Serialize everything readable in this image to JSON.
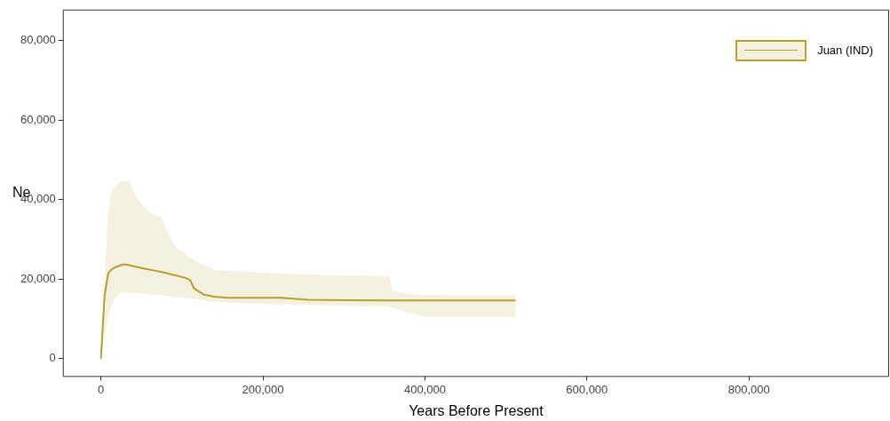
{
  "chart_data": {
    "type": "line",
    "xlabel": "Years Before Present",
    "ylabel": "Ne",
    "x": [
      0,
      4500,
      9000,
      12000,
      16800,
      25000,
      29000,
      35000,
      42500,
      54000,
      65000,
      75000,
      83000,
      93000,
      103000,
      110000,
      115000,
      127000,
      140000,
      155000,
      168000,
      222000,
      255000,
      300000,
      356000,
      360000,
      380000,
      401000,
      450000,
      512000
    ],
    "series": [
      {
        "name": "Juan (IND)",
        "color": "#b5a030",
        "values": [
          0,
          15900,
          21400,
          22200,
          22900,
          23500,
          23700,
          23500,
          23100,
          22600,
          22200,
          21800,
          21400,
          20900,
          20400,
          19800,
          17600,
          16100,
          15600,
          15300,
          15300,
          15300,
          14800,
          14700,
          14600,
          14600,
          14600,
          14600,
          14600,
          14600
        ],
        "upper": [
          1000,
          20000,
          36600,
          41400,
          43000,
          44700,
          44700,
          44700,
          41000,
          38100,
          36000,
          35600,
          31600,
          27900,
          26500,
          25300,
          25000,
          23500,
          22400,
          22000,
          22000,
          21400,
          21100,
          21000,
          20700,
          17000,
          16300,
          16000,
          15900,
          15900
        ],
        "lower": [
          0,
          6100,
          10500,
          12500,
          15000,
          16600,
          16700,
          16600,
          16500,
          16300,
          16100,
          15900,
          15700,
          15500,
          15300,
          15100,
          15000,
          14600,
          14300,
          14200,
          14000,
          13700,
          13500,
          13300,
          13100,
          12800,
          11500,
          10500,
          10500,
          10500
        ]
      }
    ],
    "xlim": [
      -47000,
      973000
    ],
    "xticks": [
      0,
      {
        "value": 200000,
        "label": "200,000"
      },
      {
        "value": 400000,
        "label": "400,000"
      },
      {
        "value": 600000,
        "label": "600,000"
      },
      {
        "value": 800000,
        "label": "800,000"
      }
    ],
    "ylim": [
      -4400,
      87800
    ],
    "yticks": [
      0,
      {
        "value": 20000,
        "label": "20,000"
      },
      {
        "value": 40000,
        "label": "40,000"
      },
      {
        "value": 60000,
        "label": "60,000"
      },
      {
        "value": 80000,
        "label": "80,000"
      }
    ],
    "grid": false,
    "legend": "top right",
    "marker": "none",
    "line_style": "solid"
  }
}
